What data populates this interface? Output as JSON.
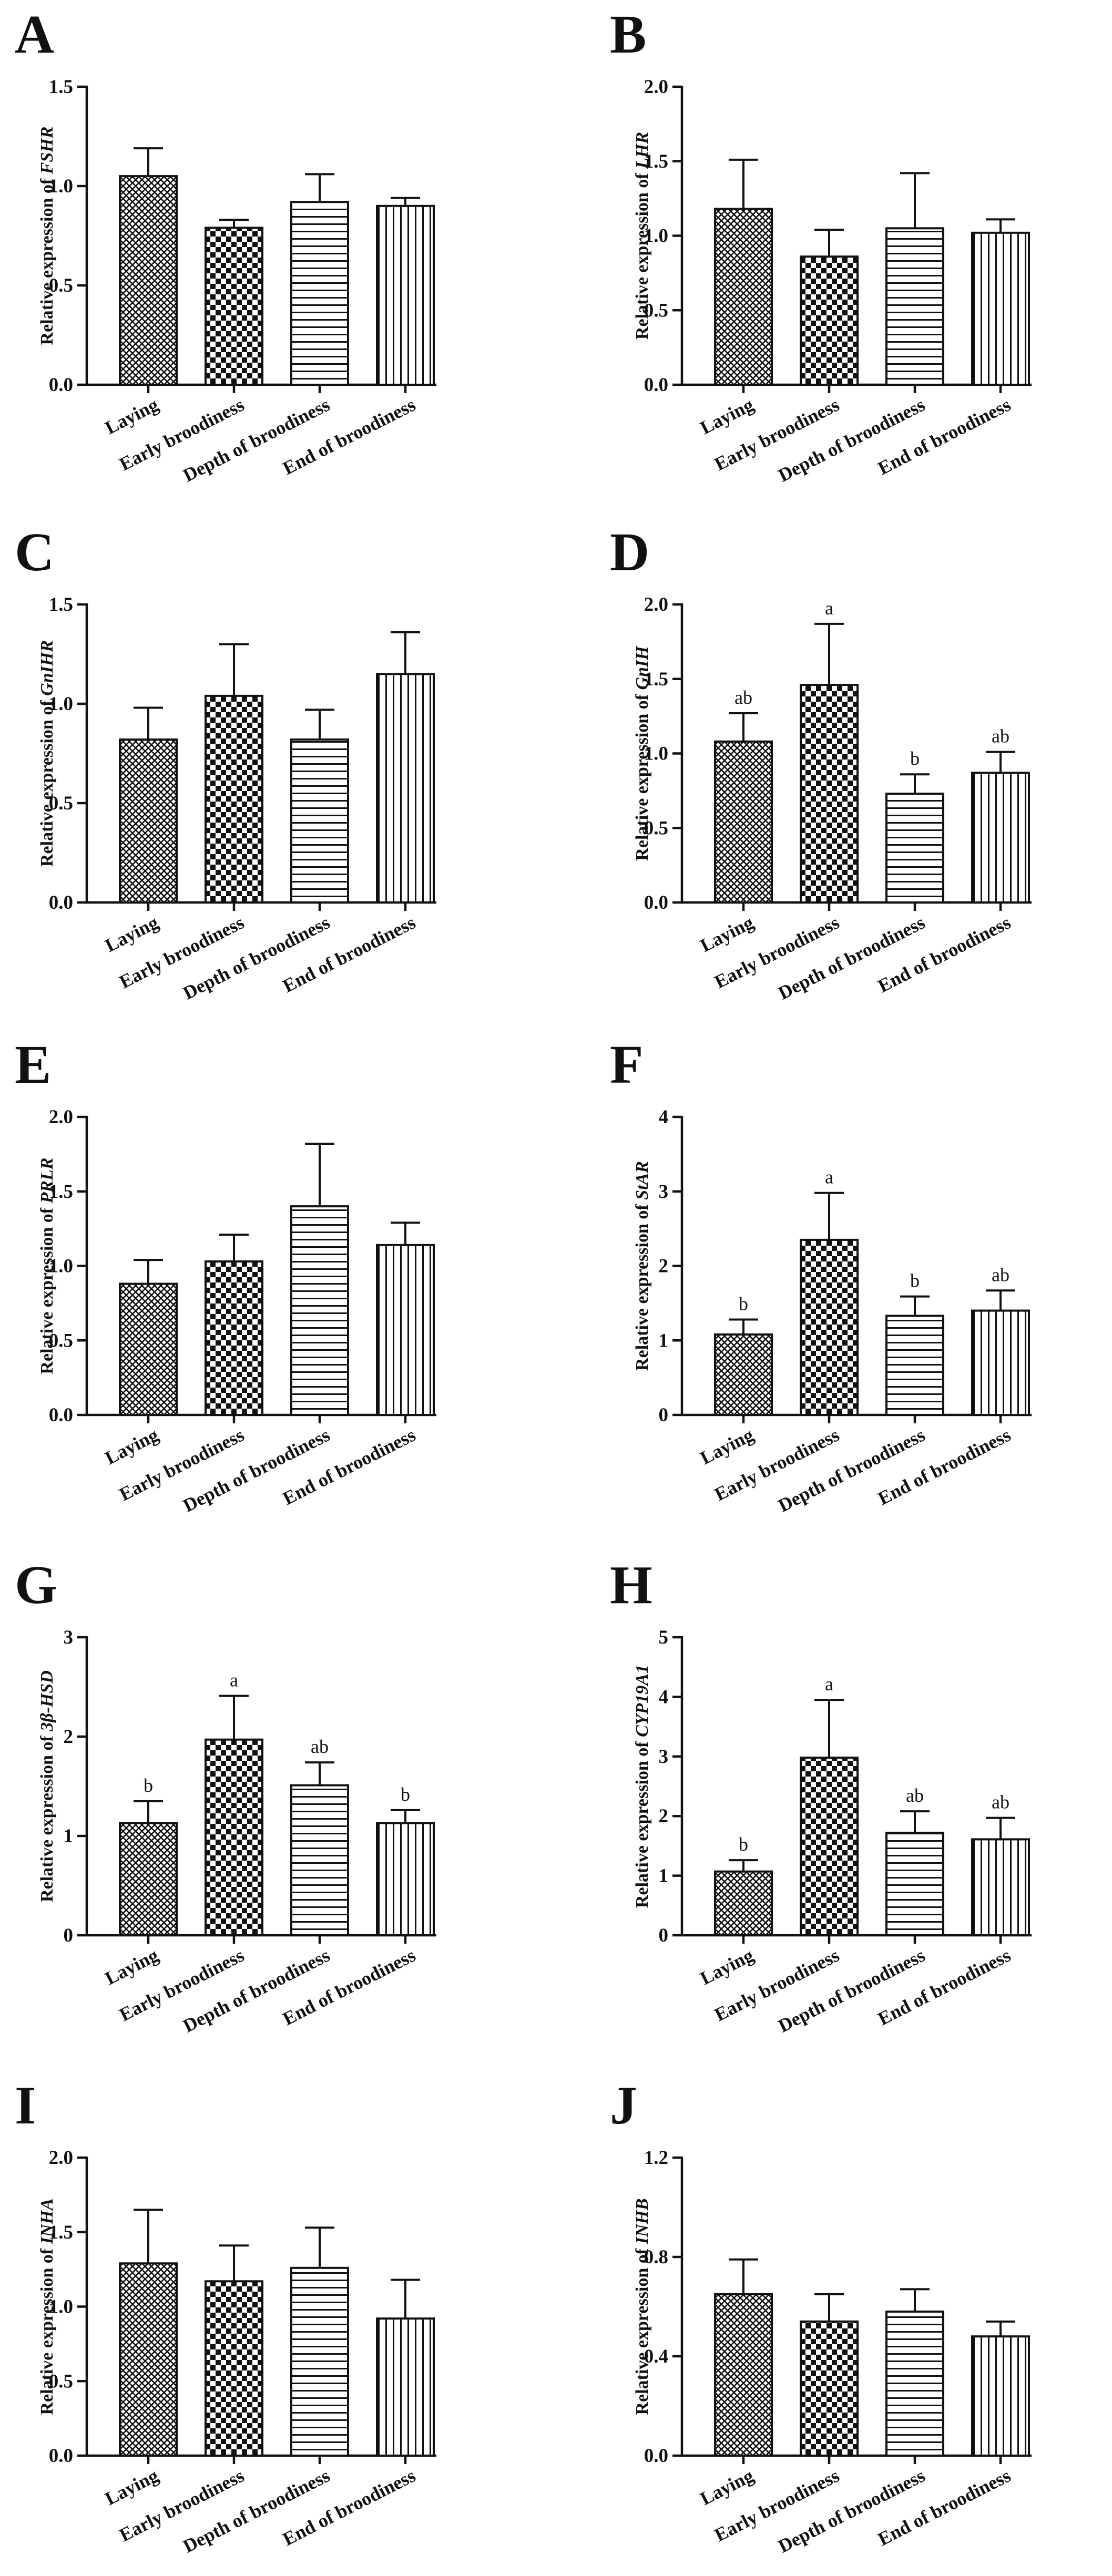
{
  "chart_data": [
    {
      "panel": "A",
      "type": "bar",
      "gene": "FSHR",
      "ylabel_prefix": "Relative expression of ",
      "categories": [
        "Laying",
        "Early broodiness",
        "Depth of broodiness",
        "End of broodiness"
      ],
      "values": [
        1.05,
        0.79,
        0.92,
        0.9
      ],
      "errors": [
        0.14,
        0.04,
        0.14,
        0.04
      ],
      "ylim": [
        0,
        1.5
      ],
      "yticks": [
        "0.0",
        "0.5",
        "1.0",
        "1.5"
      ],
      "significance": []
    },
    {
      "panel": "B",
      "type": "bar",
      "gene": "LHR",
      "ylabel_prefix": "Relative expression of ",
      "categories": [
        "Laying",
        "Early broodiness",
        "Depth of broodiness",
        "End of broodiness"
      ],
      "values": [
        1.18,
        0.86,
        1.05,
        1.02
      ],
      "errors": [
        0.33,
        0.18,
        0.37,
        0.09
      ],
      "ylim": [
        0,
        2.0
      ],
      "yticks": [
        "0.0",
        "0.5",
        "1.0",
        "1.5",
        "2.0"
      ],
      "significance": []
    },
    {
      "panel": "C",
      "type": "bar",
      "gene": "GnIHR",
      "ylabel_prefix": "Relative expression of ",
      "categories": [
        "Laying",
        "Early broodiness",
        "Depth of broodiness",
        "End of broodiness"
      ],
      "values": [
        0.82,
        1.04,
        0.82,
        1.15
      ],
      "errors": [
        0.16,
        0.26,
        0.15,
        0.21
      ],
      "ylim": [
        0,
        1.5
      ],
      "yticks": [
        "0.0",
        "0.5",
        "1.0",
        "1.5"
      ],
      "significance": []
    },
    {
      "panel": "D",
      "type": "bar",
      "gene": "GnIH",
      "ylabel_prefix": "Relative expression of ",
      "categories": [
        "Laying",
        "Early broodiness",
        "Depth of broodiness",
        "End of broodiness"
      ],
      "values": [
        1.08,
        1.46,
        0.73,
        0.87
      ],
      "errors": [
        0.19,
        0.41,
        0.13,
        0.14
      ],
      "ylim": [
        0,
        2.0
      ],
      "yticks": [
        "0.0",
        "0.5",
        "1.0",
        "1.5",
        "2.0"
      ],
      "significance": [
        "ab",
        "a",
        "b",
        "ab"
      ]
    },
    {
      "panel": "E",
      "type": "bar",
      "gene": "PRLR",
      "ylabel_prefix": "Relative expression of ",
      "categories": [
        "Laying",
        "Early broodiness",
        "Depth of broodiness",
        "End of broodiness"
      ],
      "values": [
        0.88,
        1.03,
        1.4,
        1.14
      ],
      "errors": [
        0.16,
        0.18,
        0.42,
        0.15
      ],
      "ylim": [
        0,
        2.0
      ],
      "yticks": [
        "0.0",
        "0.5",
        "1.0",
        "1.5",
        "2.0"
      ],
      "significance": []
    },
    {
      "panel": "F",
      "type": "bar",
      "gene": "StAR",
      "ylabel_prefix": "Relative expression of ",
      "categories": [
        "Laying",
        "Early broodiness",
        "Depth of broodiness",
        "End of broodiness"
      ],
      "values": [
        1.08,
        2.35,
        1.33,
        1.4
      ],
      "errors": [
        0.2,
        0.63,
        0.26,
        0.27
      ],
      "ylim": [
        0,
        4
      ],
      "yticks": [
        "0",
        "1",
        "2",
        "3",
        "4"
      ],
      "significance": [
        "b",
        "a",
        "b",
        "ab"
      ]
    },
    {
      "panel": "G",
      "type": "bar",
      "gene": "3β-HSD",
      "ylabel_prefix": "Relative expression of ",
      "categories": [
        "Laying",
        "Early broodiness",
        "Depth of broodiness",
        "End of broodiness"
      ],
      "values": [
        1.13,
        1.97,
        1.51,
        1.13
      ],
      "errors": [
        0.22,
        0.44,
        0.23,
        0.13
      ],
      "ylim": [
        0,
        3
      ],
      "yticks": [
        "0",
        "1",
        "2",
        "3"
      ],
      "significance": [
        "b",
        "a",
        "ab",
        "b"
      ]
    },
    {
      "panel": "H",
      "type": "bar",
      "gene": "CYP19A1",
      "ylabel_prefix": "Relative expression of ",
      "categories": [
        "Laying",
        "Early broodiness",
        "Depth of broodiness",
        "End of broodiness"
      ],
      "values": [
        1.07,
        2.98,
        1.72,
        1.61
      ],
      "errors": [
        0.19,
        0.97,
        0.36,
        0.36
      ],
      "ylim": [
        0,
        5
      ],
      "yticks": [
        "0",
        "1",
        "2",
        "3",
        "4",
        "5"
      ],
      "significance": [
        "b",
        "a",
        "ab",
        "ab"
      ]
    },
    {
      "panel": "I",
      "type": "bar",
      "gene": "INHA",
      "ylabel_prefix": "Relative expression of ",
      "categories": [
        "Laying",
        "Early broodiness",
        "Depth of broodiness",
        "End of broodiness"
      ],
      "values": [
        1.29,
        1.17,
        1.26,
        0.92
      ],
      "errors": [
        0.36,
        0.24,
        0.27,
        0.26
      ],
      "ylim": [
        0,
        2.0
      ],
      "yticks": [
        "0.0",
        "0.5",
        "1.0",
        "1.5",
        "2.0"
      ],
      "significance": []
    },
    {
      "panel": "J",
      "type": "bar",
      "gene": "INHB",
      "ylabel_prefix": "Relative expression of ",
      "categories": [
        "Laying",
        "Early broodiness",
        "Depth of broodiness",
        "End of broodiness"
      ],
      "values": [
        0.65,
        0.54,
        0.58,
        0.48
      ],
      "errors": [
        0.14,
        0.11,
        0.09,
        0.06
      ],
      "ylim": [
        0,
        1.2
      ],
      "yticks": [
        "0.0",
        "0.4",
        "0.8",
        "1.2"
      ],
      "significance": []
    }
  ]
}
